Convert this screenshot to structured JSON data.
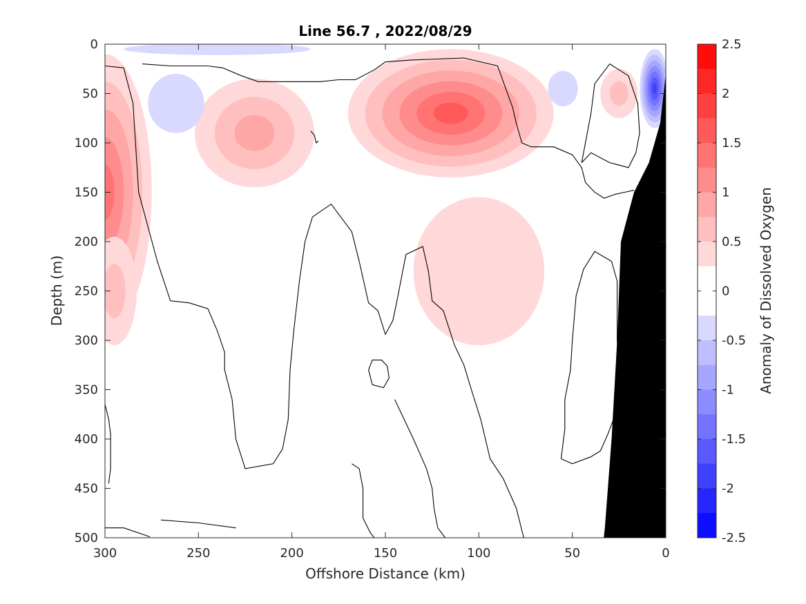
{
  "chart_data": {
    "type": "heatmap",
    "title": "Line 56.7 , 2022/08/29",
    "xlabel": "Offshore Distance (km)",
    "ylabel": "Depth (m)",
    "colorbar_label": "Anomaly of Dissolved Oxygen",
    "xlim": [
      300,
      0
    ],
    "ylim": [
      0,
      500
    ],
    "x_reversed": true,
    "y_reversed": true,
    "xticks": [
      300,
      250,
      200,
      150,
      100,
      50,
      0
    ],
    "yticks": [
      0,
      50,
      100,
      150,
      200,
      250,
      300,
      350,
      400,
      450,
      500
    ],
    "colorbar": {
      "range": [
        -2.5,
        2.5
      ],
      "step": 0.25,
      "tick_values": [
        2.5,
        2,
        1.5,
        1,
        0.5,
        0,
        -0.5,
        -1,
        -1.5,
        -2,
        -2.5
      ],
      "tick_labels": [
        "2.5",
        "2",
        "1.5",
        "1",
        "0.5",
        "0",
        "-0.5",
        "-1",
        "-1.5",
        "-2",
        "-2.5"
      ],
      "colors": {
        "positive_max": "#ff0000",
        "negative_max": "#0000ff",
        "neutral": "#ffffff"
      }
    },
    "anomaly_features": [
      {
        "sign": "positive",
        "center_km": 300,
        "center_depth_m": 150,
        "peak": 1.25
      },
      {
        "sign": "positive",
        "center_km": 295,
        "center_depth_m": 250,
        "peak": 0.6
      },
      {
        "sign": "positive",
        "center_km": 220,
        "center_depth_m": 90,
        "peak": 0.75
      },
      {
        "sign": "positive",
        "center_km": 115,
        "center_depth_m": 70,
        "peak": 1.4
      },
      {
        "sign": "positive",
        "center_km": 100,
        "center_depth_m": 230,
        "peak": 0.3
      },
      {
        "sign": "positive",
        "center_km": 25,
        "center_depth_m": 50,
        "peak": 0.5
      },
      {
        "sign": "negative",
        "center_km": 262,
        "center_depth_m": 60,
        "peak": -0.3
      },
      {
        "sign": "negative",
        "center_km": 55,
        "center_depth_m": 45,
        "peak": -0.3
      },
      {
        "sign": "negative",
        "center_km": 240,
        "center_depth_m": 5,
        "peak": -0.3
      },
      {
        "sign": "negative",
        "center_km": 6,
        "center_depth_m": 45,
        "peak": -1.8
      }
    ],
    "bathymetry_mask": {
      "color": "#000000",
      "outline": [
        [
          33,
          500
        ],
        [
          29,
          400
        ],
        [
          26,
          300
        ],
        [
          24,
          200
        ],
        [
          17,
          150
        ],
        [
          9,
          120
        ],
        [
          3,
          80
        ],
        [
          0,
          30
        ],
        [
          0,
          500
        ]
      ]
    }
  },
  "colors": {
    "axes": "#262626",
    "contour": "#000000",
    "background": "#ffffff"
  }
}
